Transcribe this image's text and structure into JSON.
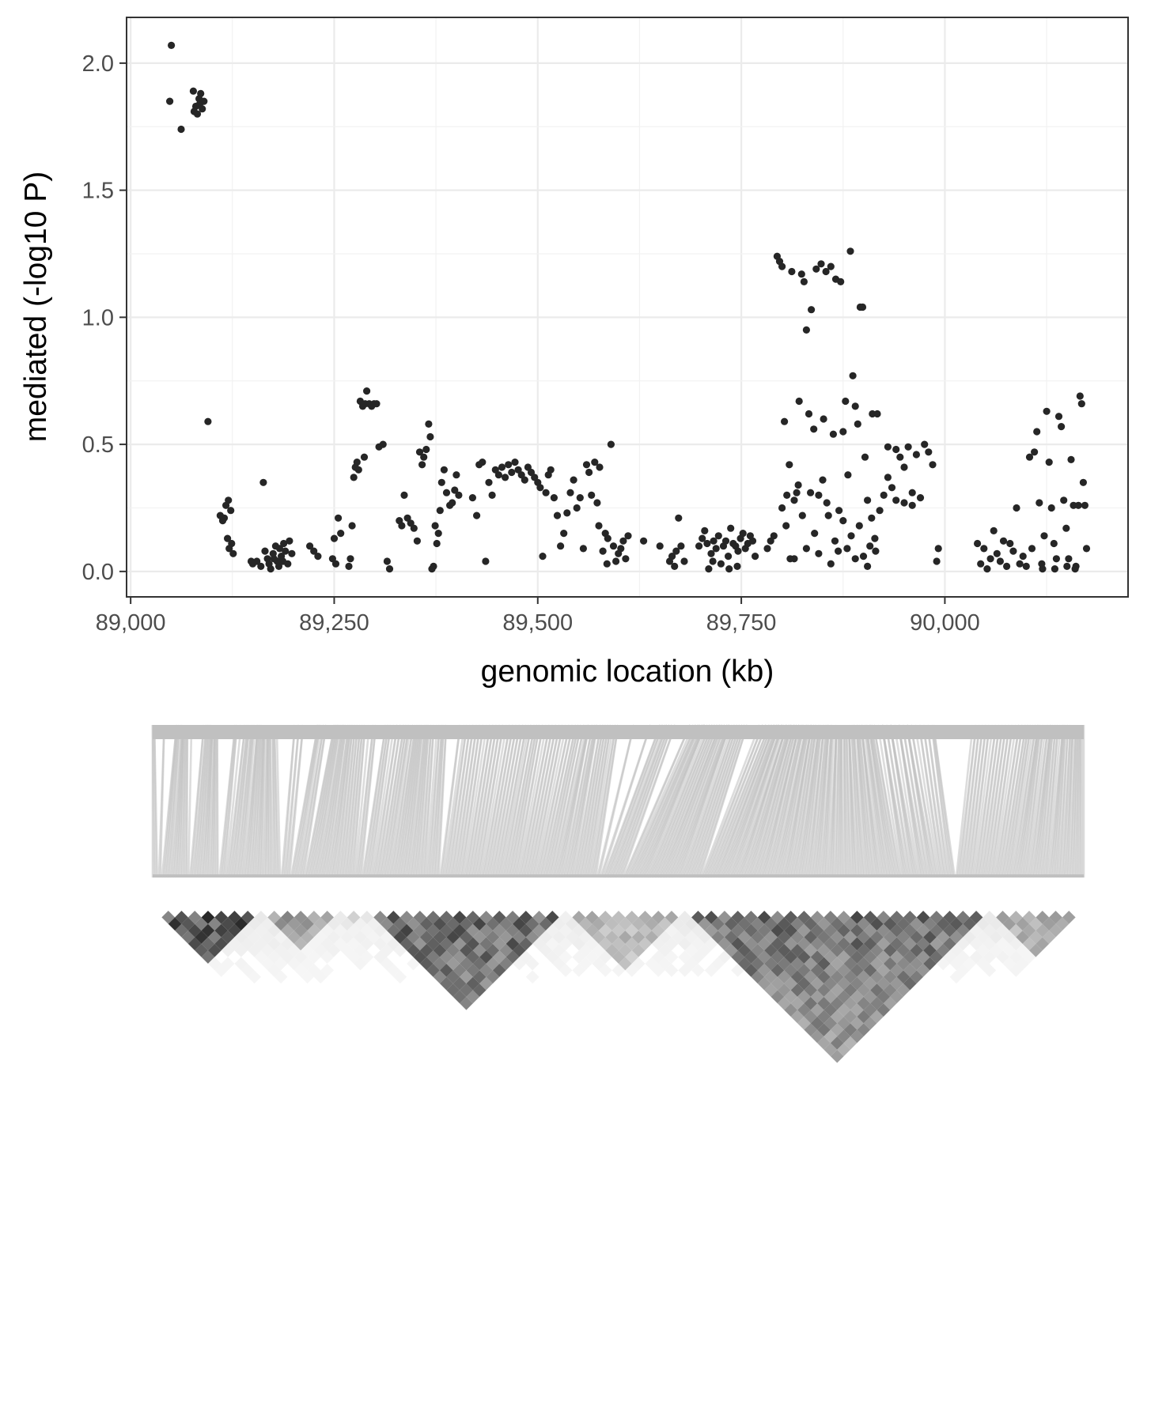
{
  "chart_data": [
    {
      "type": "scatter",
      "xlabel": "genomic location (kb)",
      "ylabel": "mediated (-log10 P)",
      "xlim": [
        88995,
        90225
      ],
      "ylim": [
        -0.1,
        2.18
      ],
      "x_ticks": [
        89000,
        89250,
        89500,
        89750,
        90000
      ],
      "x_tick_labels": [
        "89,000",
        "89,250",
        "89,500",
        "89,750",
        "90,000"
      ],
      "y_ticks": [
        0.0,
        0.5,
        1.0,
        1.5,
        2.0
      ],
      "y_tick_labels": [
        "0.0",
        "0.5",
        "1.0",
        "1.5",
        "2.0"
      ],
      "grid": true,
      "theme": "black-and-white (light grey grid, dark panel border)",
      "point_color": "#262626",
      "points": [
        [
          89050,
          2.07
        ],
        [
          89048,
          1.85
        ],
        [
          89062,
          1.74
        ],
        [
          89077,
          1.89
        ],
        [
          89080,
          1.83
        ],
        [
          89082,
          1.8
        ],
        [
          89084,
          1.86
        ],
        [
          89086,
          1.88
        ],
        [
          89088,
          1.82
        ],
        [
          89090,
          1.85
        ],
        [
          89078,
          1.81
        ],
        [
          89085,
          1.84
        ],
        [
          89095,
          0.59
        ],
        [
          89110,
          0.22
        ],
        [
          89113,
          0.2
        ],
        [
          89117,
          0.26
        ],
        [
          89120,
          0.28
        ],
        [
          89123,
          0.24
        ],
        [
          89119,
          0.13
        ],
        [
          89121,
          0.09
        ],
        [
          89126,
          0.07
        ],
        [
          89124,
          0.11
        ],
        [
          89115,
          0.21
        ],
        [
          89148,
          0.04
        ],
        [
          89150,
          0.03
        ],
        [
          89155,
          0.04
        ],
        [
          89160,
          0.02
        ],
        [
          89163,
          0.35
        ],
        [
          89165,
          0.08
        ],
        [
          89168,
          0.05
        ],
        [
          89170,
          0.03
        ],
        [
          89172,
          0.01
        ],
        [
          89175,
          0.07
        ],
        [
          89178,
          0.1
        ],
        [
          89180,
          0.04
        ],
        [
          89182,
          0.02
        ],
        [
          89185,
          0.06
        ],
        [
          89188,
          0.11
        ],
        [
          89190,
          0.08
        ],
        [
          89193,
          0.03
        ],
        [
          89195,
          0.12
        ],
        [
          89198,
          0.07
        ],
        [
          89183,
          0.09
        ],
        [
          89176,
          0.05
        ],
        [
          89187,
          0.04
        ],
        [
          89220,
          0.1
        ],
        [
          89225,
          0.08
        ],
        [
          89230,
          0.06
        ],
        [
          89248,
          0.05
        ],
        [
          89250,
          0.13
        ],
        [
          89252,
          0.03
        ],
        [
          89255,
          0.21
        ],
        [
          89258,
          0.15
        ],
        [
          89268,
          0.02
        ],
        [
          89270,
          0.05
        ],
        [
          89272,
          0.18
        ],
        [
          89274,
          0.37
        ],
        [
          89276,
          0.41
        ],
        [
          89278,
          0.43
        ],
        [
          89280,
          0.4
        ],
        [
          89282,
          0.67
        ],
        [
          89285,
          0.65
        ],
        [
          89288,
          0.66
        ],
        [
          89290,
          0.71
        ],
        [
          89293,
          0.66
        ],
        [
          89296,
          0.65
        ],
        [
          89299,
          0.66
        ],
        [
          89302,
          0.66
        ],
        [
          89305,
          0.49
        ],
        [
          89310,
          0.5
        ],
        [
          89315,
          0.04
        ],
        [
          89318,
          0.01
        ],
        [
          89287,
          0.45
        ],
        [
          89330,
          0.2
        ],
        [
          89333,
          0.18
        ],
        [
          89336,
          0.3
        ],
        [
          89340,
          0.21
        ],
        [
          89344,
          0.19
        ],
        [
          89348,
          0.17
        ],
        [
          89352,
          0.12
        ],
        [
          89355,
          0.47
        ],
        [
          89358,
          0.42
        ],
        [
          89360,
          0.45
        ],
        [
          89363,
          0.48
        ],
        [
          89366,
          0.58
        ],
        [
          89368,
          0.53
        ],
        [
          89370,
          0.01
        ],
        [
          89372,
          0.02
        ],
        [
          89374,
          0.18
        ],
        [
          89376,
          0.11
        ],
        [
          89378,
          0.15
        ],
        [
          89380,
          0.24
        ],
        [
          89382,
          0.35
        ],
        [
          89385,
          0.4
        ],
        [
          89388,
          0.31
        ],
        [
          89392,
          0.26
        ],
        [
          89395,
          0.27
        ],
        [
          89398,
          0.32
        ],
        [
          89400,
          0.38
        ],
        [
          89403,
          0.3
        ],
        [
          89420,
          0.29
        ],
        [
          89425,
          0.22
        ],
        [
          89428,
          0.42
        ],
        [
          89432,
          0.43
        ],
        [
          89436,
          0.04
        ],
        [
          89440,
          0.35
        ],
        [
          89444,
          0.3
        ],
        [
          89448,
          0.4
        ],
        [
          89452,
          0.38
        ],
        [
          89456,
          0.41
        ],
        [
          89460,
          0.37
        ],
        [
          89464,
          0.42
        ],
        [
          89468,
          0.39
        ],
        [
          89472,
          0.43
        ],
        [
          89476,
          0.4
        ],
        [
          89480,
          0.38
        ],
        [
          89484,
          0.36
        ],
        [
          89488,
          0.41
        ],
        [
          89492,
          0.39
        ],
        [
          89496,
          0.37
        ],
        [
          89500,
          0.35
        ],
        [
          89503,
          0.33
        ],
        [
          89506,
          0.06
        ],
        [
          89510,
          0.31
        ],
        [
          89513,
          0.38
        ],
        [
          89516,
          0.4
        ],
        [
          89520,
          0.29
        ],
        [
          89524,
          0.22
        ],
        [
          89528,
          0.1
        ],
        [
          89532,
          0.15
        ],
        [
          89536,
          0.23
        ],
        [
          89540,
          0.31
        ],
        [
          89544,
          0.36
        ],
        [
          89548,
          0.25
        ],
        [
          89552,
          0.29
        ],
        [
          89556,
          0.09
        ],
        [
          89560,
          0.42
        ],
        [
          89563,
          0.39
        ],
        [
          89566,
          0.3
        ],
        [
          89570,
          0.43
        ],
        [
          89573,
          0.27
        ],
        [
          89576,
          0.41
        ],
        [
          89580,
          0.08
        ],
        [
          89583,
          0.15
        ],
        [
          89586,
          0.13
        ],
        [
          89590,
          0.5
        ],
        [
          89593,
          0.1
        ],
        [
          89596,
          0.04
        ],
        [
          89599,
          0.07
        ],
        [
          89602,
          0.09
        ],
        [
          89605,
          0.12
        ],
        [
          89608,
          0.05
        ],
        [
          89611,
          0.14
        ],
        [
          89575,
          0.18
        ],
        [
          89585,
          0.03
        ],
        [
          89630,
          0.12
        ],
        [
          89650,
          0.1
        ],
        [
          89662,
          0.04
        ],
        [
          89665,
          0.06
        ],
        [
          89668,
          0.02
        ],
        [
          89670,
          0.08
        ],
        [
          89673,
          0.21
        ],
        [
          89676,
          0.1
        ],
        [
          89680,
          0.04
        ],
        [
          89698,
          0.1
        ],
        [
          89702,
          0.13
        ],
        [
          89705,
          0.16
        ],
        [
          89708,
          0.11
        ],
        [
          89710,
          0.01
        ],
        [
          89713,
          0.07
        ],
        [
          89716,
          0.12
        ],
        [
          89719,
          0.09
        ],
        [
          89722,
          0.14
        ],
        [
          89725,
          0.03
        ],
        [
          89728,
          0.1
        ],
        [
          89731,
          0.12
        ],
        [
          89734,
          0.06
        ],
        [
          89737,
          0.17
        ],
        [
          89740,
          0.11
        ],
        [
          89743,
          0.1
        ],
        [
          89746,
          0.08
        ],
        [
          89749,
          0.13
        ],
        [
          89752,
          0.15
        ],
        [
          89755,
          0.09
        ],
        [
          89758,
          0.11
        ],
        [
          89761,
          0.14
        ],
        [
          89764,
          0.12
        ],
        [
          89767,
          0.06
        ],
        [
          89715,
          0.04
        ],
        [
          89735,
          0.01
        ],
        [
          89745,
          0.02
        ],
        [
          89782,
          0.09
        ],
        [
          89786,
          0.12
        ],
        [
          89790,
          0.14
        ],
        [
          89794,
          1.24
        ],
        [
          89797,
          1.22
        ],
        [
          89800,
          1.2
        ],
        [
          89803,
          0.59
        ],
        [
          89806,
          0.3
        ],
        [
          89809,
          0.42
        ],
        [
          89812,
          1.18
        ],
        [
          89815,
          0.05
        ],
        [
          89818,
          0.31
        ],
        [
          89821,
          0.67
        ],
        [
          89824,
          1.17
        ],
        [
          89827,
          1.14
        ],
        [
          89830,
          0.95
        ],
        [
          89833,
          0.62
        ],
        [
          89836,
          1.03
        ],
        [
          89839,
          0.56
        ],
        [
          89842,
          1.19
        ],
        [
          89845,
          0.3
        ],
        [
          89848,
          1.21
        ],
        [
          89851,
          0.6
        ],
        [
          89854,
          1.18
        ],
        [
          89857,
          0.22
        ],
        [
          89860,
          1.2
        ],
        [
          89863,
          0.54
        ],
        [
          89866,
          1.15
        ],
        [
          89869,
          0.08
        ],
        [
          89872,
          1.14
        ],
        [
          89875,
          0.55
        ],
        [
          89878,
          0.67
        ],
        [
          89881,
          0.38
        ],
        [
          89884,
          1.26
        ],
        [
          89887,
          0.77
        ],
        [
          89890,
          0.65
        ],
        [
          89893,
          0.58
        ],
        [
          89896,
          1.04
        ],
        [
          89899,
          1.04
        ],
        [
          89902,
          0.45
        ],
        [
          89905,
          0.28
        ],
        [
          89908,
          0.1
        ],
        [
          89911,
          0.62
        ],
        [
          89914,
          0.13
        ],
        [
          89917,
          0.62
        ],
        [
          89800,
          0.25
        ],
        [
          89805,
          0.18
        ],
        [
          89810,
          0.05
        ],
        [
          89815,
          0.28
        ],
        [
          89820,
          0.34
        ],
        [
          89825,
          0.22
        ],
        [
          89830,
          0.09
        ],
        [
          89835,
          0.31
        ],
        [
          89840,
          0.15
        ],
        [
          89845,
          0.07
        ],
        [
          89850,
          0.36
        ],
        [
          89855,
          0.27
        ],
        [
          89860,
          0.03
        ],
        [
          89865,
          0.12
        ],
        [
          89870,
          0.24
        ],
        [
          89875,
          0.2
        ],
        [
          89880,
          0.09
        ],
        [
          89885,
          0.14
        ],
        [
          89890,
          0.05
        ],
        [
          89895,
          0.18
        ],
        [
          89900,
          0.06
        ],
        [
          89905,
          0.02
        ],
        [
          89910,
          0.21
        ],
        [
          89915,
          0.08
        ],
        [
          89920,
          0.24
        ],
        [
          89925,
          0.3
        ],
        [
          89930,
          0.49
        ],
        [
          89935,
          0.33
        ],
        [
          89940,
          0.28
        ],
        [
          89945,
          0.45
        ],
        [
          89950,
          0.27
        ],
        [
          89955,
          0.49
        ],
        [
          89960,
          0.31
        ],
        [
          89965,
          0.46
        ],
        [
          89970,
          0.29
        ],
        [
          89975,
          0.5
        ],
        [
          89980,
          0.47
        ],
        [
          89985,
          0.42
        ],
        [
          89990,
          0.04
        ],
        [
          89992,
          0.09
        ],
        [
          89960,
          0.26
        ],
        [
          89950,
          0.41
        ],
        [
          89940,
          0.48
        ],
        [
          89930,
          0.37
        ],
        [
          90040,
          0.11
        ],
        [
          90044,
          0.03
        ],
        [
          90048,
          0.09
        ],
        [
          90052,
          0.01
        ],
        [
          90056,
          0.05
        ],
        [
          90060,
          0.16
        ],
        [
          90064,
          0.07
        ],
        [
          90068,
          0.04
        ],
        [
          90072,
          0.12
        ],
        [
          90076,
          0.02
        ],
        [
          90080,
          0.11
        ],
        [
          90084,
          0.08
        ],
        [
          90088,
          0.25
        ],
        [
          90092,
          0.03
        ],
        [
          90096,
          0.06
        ],
        [
          90100,
          0.02
        ],
        [
          90104,
          0.45
        ],
        [
          90107,
          0.09
        ],
        [
          90110,
          0.47
        ],
        [
          90113,
          0.55
        ],
        [
          90116,
          0.27
        ],
        [
          90119,
          0.03
        ],
        [
          90122,
          0.14
        ],
        [
          90125,
          0.63
        ],
        [
          90128,
          0.43
        ],
        [
          90131,
          0.25
        ],
        [
          90134,
          0.11
        ],
        [
          90137,
          0.05
        ],
        [
          90140,
          0.61
        ],
        [
          90143,
          0.57
        ],
        [
          90146,
          0.28
        ],
        [
          90149,
          0.17
        ],
        [
          90152,
          0.05
        ],
        [
          90155,
          0.44
        ],
        [
          90158,
          0.26
        ],
        [
          90161,
          0.02
        ],
        [
          90164,
          0.26
        ],
        [
          90166,
          0.69
        ],
        [
          90168,
          0.66
        ],
        [
          90170,
          0.35
        ],
        [
          90172,
          0.26
        ],
        [
          90174,
          0.09
        ],
        [
          90120,
          0.01
        ],
        [
          90135,
          0.01
        ],
        [
          90150,
          0.02
        ],
        [
          90160,
          0.01
        ]
      ]
    },
    {
      "type": "heatmap",
      "description_free": true,
      "upper_band_color": "#c0c0c0",
      "cell_color_dark": "#111111",
      "cell_color_light": "#ffffff"
    }
  ]
}
